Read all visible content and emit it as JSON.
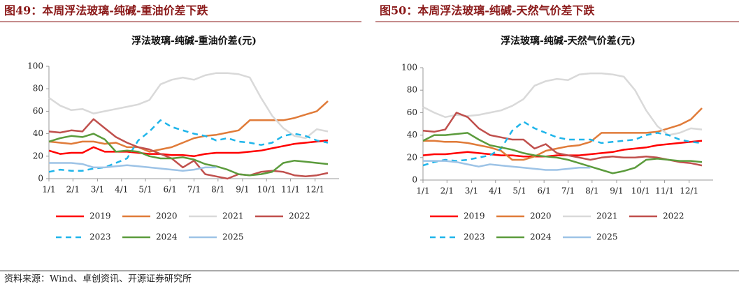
{
  "chart_data": [
    {
      "type": "line",
      "caption": "图49：本周浮法玻璃-纯碱-重油价差下跌",
      "title": "浮法玻璃-纯碱-重油价差(元)",
      "x": [
        1,
        3,
        5,
        7,
        9,
        11,
        13,
        15,
        17,
        19,
        21,
        23,
        25,
        27,
        29,
        31,
        33,
        35,
        37,
        39,
        41,
        43,
        45,
        47,
        49,
        51
      ],
      "xlim": [
        1,
        53
      ],
      "xticks": [
        {
          "value": 1,
          "label": "1/1"
        },
        {
          "value": 5.3,
          "label": "2/1"
        },
        {
          "value": 9.7,
          "label": "3/1"
        },
        {
          "value": 14,
          "label": "4/1"
        },
        {
          "value": 18.3,
          "label": "5/1"
        },
        {
          "value": 22.7,
          "label": "6/1"
        },
        {
          "value": 27,
          "label": "7/1"
        },
        {
          "value": 31.3,
          "label": "8/1"
        },
        {
          "value": 35.7,
          "label": "9/1"
        },
        {
          "value": 40,
          "label": "10/1"
        },
        {
          "value": 44.3,
          "label": "11/1"
        },
        {
          "value": 48.7,
          "label": "12/1"
        }
      ],
      "ylim": [
        0,
        100
      ],
      "yticks": [
        0,
        20,
        40,
        60,
        80,
        100
      ],
      "legend": "bottom",
      "series": [
        {
          "name": "2019",
          "color": "#ff0000",
          "values": [
            25,
            22,
            23,
            23,
            28,
            24,
            24,
            24,
            23,
            22,
            22,
            21,
            21,
            20,
            22,
            23,
            23,
            23,
            24,
            25,
            27,
            29,
            31,
            32,
            33,
            34
          ]
        },
        {
          "name": "2020",
          "color": "#e07b39",
          "values": [
            33,
            32,
            31,
            33,
            33,
            31,
            32,
            28,
            28,
            24,
            26,
            28,
            32,
            36,
            38,
            39,
            41,
            43,
            52,
            52,
            52,
            52,
            54,
            57,
            60,
            69
          ]
        },
        {
          "name": "2021",
          "color": "#d9d9d9",
          "values": [
            72,
            65,
            61,
            62,
            58,
            60,
            62,
            64,
            66,
            70,
            84,
            88,
            90,
            88,
            92,
            94,
            94,
            93,
            90,
            72,
            56,
            45,
            38,
            36,
            44,
            42
          ]
        },
        {
          "name": "2022",
          "color": "#c0504d",
          "values": [
            42,
            41,
            43,
            42,
            53,
            45,
            37,
            32,
            28,
            26,
            22,
            18,
            10,
            16,
            4,
            2,
            0,
            4,
            3,
            6,
            7,
            6,
            3,
            2,
            3,
            5
          ]
        },
        {
          "name": "2023",
          "color": "#1fb5ea",
          "dashed": true,
          "values": [
            6,
            8,
            7,
            7,
            9,
            10,
            14,
            18,
            34,
            42,
            52,
            46,
            43,
            40,
            38,
            34,
            36,
            33,
            32,
            30,
            32,
            38,
            40,
            38,
            34,
            32
          ]
        },
        {
          "name": "2024",
          "color": "#5b9b3c",
          "values": [
            33,
            36,
            38,
            37,
            40,
            35,
            24,
            25,
            24,
            20,
            18,
            18,
            19,
            17,
            13,
            11,
            8,
            4,
            3,
            4,
            6,
            14,
            16,
            15,
            14,
            13
          ]
        },
        {
          "name": "2025",
          "color": "#9dc3e6",
          "values": [
            14,
            14,
            14,
            13,
            10,
            10,
            11,
            12,
            11,
            10,
            9,
            8,
            7,
            8,
            10,
            10,
            null,
            null,
            null,
            null,
            null,
            null,
            null,
            null,
            null,
            null
          ]
        }
      ]
    },
    {
      "type": "line",
      "caption": "图50：本周浮法玻璃-纯碱-天然气价差下跌",
      "title": "浮法玻璃-纯碱-天然气价差(元)",
      "x": [
        1,
        3,
        5,
        7,
        9,
        11,
        13,
        15,
        17,
        19,
        21,
        23,
        25,
        27,
        29,
        31,
        33,
        35,
        37,
        39,
        41,
        43,
        45,
        47,
        49,
        51
      ],
      "xlim": [
        1,
        53
      ],
      "xticks": [
        {
          "value": 1,
          "label": "1/1"
        },
        {
          "value": 5.3,
          "label": "2/1"
        },
        {
          "value": 9.7,
          "label": "3/1"
        },
        {
          "value": 14,
          "label": "4/1"
        },
        {
          "value": 18.3,
          "label": "5/1"
        },
        {
          "value": 22.7,
          "label": "6/1"
        },
        {
          "value": 27,
          "label": "7/1"
        },
        {
          "value": 31.3,
          "label": "8/1"
        },
        {
          "value": 35.7,
          "label": "9/1"
        },
        {
          "value": 40,
          "label": "10/1"
        },
        {
          "value": 44.3,
          "label": "11/1"
        },
        {
          "value": 48.7,
          "label": "12/1"
        }
      ],
      "ylim": [
        0,
        100
      ],
      "yticks": [
        0,
        20,
        40,
        60,
        80,
        100
      ],
      "legend": "bottom",
      "series": [
        {
          "name": "2019",
          "color": "#ff0000",
          "values": [
            22,
            23,
            23,
            24,
            25,
            24,
            23,
            22,
            22,
            21,
            21,
            21,
            22,
            22,
            22,
            23,
            24,
            25,
            27,
            28,
            29,
            31,
            32,
            33,
            34,
            35
          ]
        },
        {
          "name": "2020",
          "color": "#e07b39",
          "values": [
            35,
            35,
            34,
            34,
            33,
            31,
            29,
            26,
            18,
            18,
            21,
            26,
            28,
            30,
            31,
            34,
            42,
            42,
            42,
            42,
            42,
            43,
            46,
            49,
            54,
            64
          ]
        },
        {
          "name": "2021",
          "color": "#d9d9d9",
          "values": [
            65,
            60,
            56,
            58,
            57,
            58,
            60,
            62,
            66,
            72,
            84,
            88,
            90,
            89,
            94,
            95,
            95,
            94,
            92,
            80,
            62,
            48,
            40,
            42,
            46,
            45
          ]
        },
        {
          "name": "2022",
          "color": "#c0504d",
          "values": [
            44,
            43,
            45,
            60,
            56,
            46,
            40,
            38,
            36,
            36,
            28,
            32,
            24,
            22,
            20,
            18,
            20,
            21,
            20,
            20,
            21,
            20,
            18,
            16,
            15,
            13
          ]
        },
        {
          "name": "2023",
          "color": "#1fb5ea",
          "dashed": true,
          "values": [
            13,
            16,
            18,
            17,
            18,
            20,
            22,
            28,
            44,
            52,
            46,
            42,
            38,
            36,
            36,
            36,
            33,
            34,
            35,
            36,
            40,
            42,
            40,
            36,
            34,
            33
          ]
        },
        {
          "name": "2024",
          "color": "#5b9b3c",
          "values": [
            35,
            40,
            40,
            41,
            42,
            36,
            31,
            29,
            27,
            24,
            22,
            21,
            20,
            18,
            15,
            12,
            9,
            6,
            8,
            11,
            18,
            19,
            18,
            17,
            17,
            16
          ]
        },
        {
          "name": "2025",
          "color": "#9dc3e6",
          "values": [
            17,
            17,
            17,
            16,
            14,
            12,
            14,
            13,
            12,
            11,
            10,
            9,
            9,
            10,
            11,
            11,
            null,
            null,
            null,
            null,
            null,
            null,
            null,
            null,
            null,
            null
          ]
        }
      ]
    }
  ],
  "source": "资料来源：Wind、卓创资讯、开源证券研究所"
}
